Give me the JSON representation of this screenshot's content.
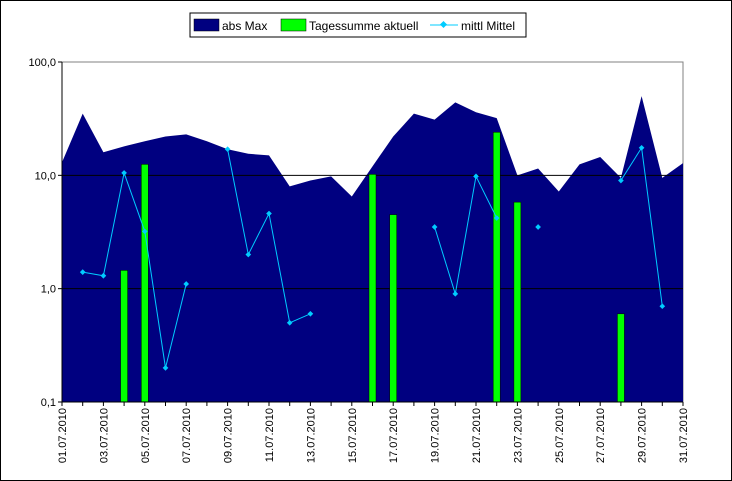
{
  "chart_data": {
    "type": "bar",
    "y_scale": "log",
    "ylim": [
      0.1,
      100
    ],
    "y_ticks": [
      {
        "value": 0.1,
        "label": "0,1"
      },
      {
        "value": 1,
        "label": "1,0"
      },
      {
        "value": 10,
        "label": "10,0"
      },
      {
        "value": 100,
        "label": "100,0"
      }
    ],
    "grid": "horizontal",
    "legend_position": "top",
    "categories": [
      "01.07.2010",
      "02.07.2010",
      "03.07.2010",
      "04.07.2010",
      "05.07.2010",
      "06.07.2010",
      "07.07.2010",
      "08.07.2010",
      "09.07.2010",
      "10.07.2010",
      "11.07.2010",
      "12.07.2010",
      "13.07.2010",
      "14.07.2010",
      "15.07.2010",
      "16.07.2010",
      "17.07.2010",
      "18.07.2010",
      "19.07.2010",
      "20.07.2010",
      "21.07.2010",
      "22.07.2010",
      "23.07.2010",
      "24.07.2010",
      "25.07.2010",
      "26.07.2010",
      "27.07.2010",
      "28.07.2010",
      "29.07.2010",
      "30.07.2010",
      "31.07.2010"
    ],
    "tick_labels": [
      "01.07.2010",
      "03.07.2010",
      "05.07.2010",
      "07.07.2010",
      "09.07.2010",
      "11.07.2010",
      "13.07.2010",
      "15.07.2010",
      "17.07.2010",
      "19.07.2010",
      "21.07.2010",
      "23.07.2010",
      "25.07.2010",
      "27.07.2010",
      "29.07.2010",
      "31.07.2010"
    ],
    "series": [
      {
        "name": "abs Max",
        "kind": "area",
        "color": "#000080",
        "values": [
          13,
          35,
          16,
          18,
          20,
          22,
          23,
          20,
          17,
          15.5,
          15,
          8,
          9,
          9.8,
          6.5,
          12,
          22,
          35,
          31,
          44,
          36,
          32,
          10,
          11.5,
          7.2,
          12.5,
          14.5,
          9.5,
          50,
          9.5,
          12.8
        ]
      },
      {
        "name": "Tagessumme aktuell",
        "kind": "bar",
        "color": "#00ff00",
        "values": [
          null,
          null,
          null,
          1.45,
          12.5,
          null,
          null,
          null,
          null,
          null,
          null,
          null,
          null,
          null,
          null,
          10.2,
          4.5,
          null,
          null,
          null,
          null,
          24,
          5.8,
          null,
          null,
          null,
          null,
          0.6,
          null,
          null,
          null
        ]
      },
      {
        "name": "mittl Mittel",
        "kind": "line",
        "color": "#00ccff",
        "values": [
          null,
          1.4,
          1.3,
          10.5,
          3.2,
          0.2,
          1.1,
          null,
          17,
          2.0,
          4.6,
          0.5,
          0.6,
          null,
          null,
          null,
          null,
          null,
          3.5,
          0.9,
          9.8,
          4.2,
          null,
          3.5,
          null,
          null,
          null,
          9.0,
          17.5,
          0.7,
          null
        ]
      }
    ]
  }
}
